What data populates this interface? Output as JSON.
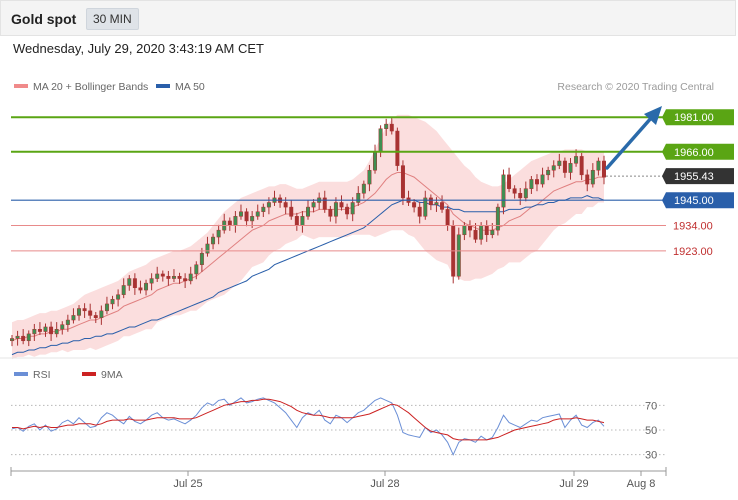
{
  "header": {
    "title": "Gold spot",
    "interval": "30 MIN"
  },
  "timestamp": "Wednesday, July 29, 2020 3:43:19 AM CET",
  "credit": "Research © 2020 Trading Central",
  "colors": {
    "support_resistance": "#5aa514",
    "ma50": "#2a5faa",
    "bollinger": "#f08a8a",
    "current_price": "#333333",
    "rsi": "#6b8fd6",
    "rsi_ma": "#cc2222",
    "arrow": "#2a6aaa",
    "candle": "#a83232"
  },
  "chart_data": [
    {
      "type": "candlestick",
      "legend": [
        {
          "label": "MA 20 + Bollinger Bands",
          "color": "#f08a8a"
        },
        {
          "label": "MA 50",
          "color": "#2a5faa"
        }
      ],
      "ylim": [
        1880,
        1985
      ],
      "x_ticks": [
        "Jul 25",
        "Jul 28",
        "Jul 29",
        "Aug 8"
      ],
      "levels": [
        {
          "value": 1981.0,
          "label": "1981.00",
          "kind": "resistance"
        },
        {
          "value": 1966.0,
          "label": "1966.00",
          "kind": "resistance"
        },
        {
          "value": 1955.43,
          "label": "1955.43",
          "kind": "current"
        },
        {
          "value": 1945.0,
          "label": "1945.00",
          "kind": "ma50"
        },
        {
          "value": 1934.0,
          "label": "1934.00",
          "kind": "support"
        },
        {
          "value": 1923.0,
          "label": "1923.00",
          "kind": "support"
        }
      ],
      "close": [
        1885,
        1886,
        1884,
        1887,
        1889,
        1888,
        1890,
        1887,
        1889,
        1891,
        1893,
        1895,
        1898,
        1897,
        1895,
        1894,
        1897,
        1900,
        1902,
        1904,
        1908,
        1911,
        1907,
        1906,
        1909,
        1911,
        1913,
        1912,
        1911,
        1912,
        1911,
        1910,
        1913,
        1917,
        1922,
        1926,
        1929,
        1932,
        1936,
        1934,
        1938,
        1940,
        1936,
        1938,
        1940,
        1942,
        1944,
        1946,
        1944,
        1942,
        1938,
        1934,
        1938,
        1942,
        1944,
        1946,
        1941,
        1938,
        1944,
        1942,
        1939,
        1944,
        1948,
        1952,
        1958,
        1966,
        1976,
        1978,
        1975,
        1960,
        1946,
        1944,
        1942,
        1938,
        1946,
        1943,
        1944,
        1941,
        1934,
        1912,
        1930,
        1934,
        1932,
        1928,
        1934,
        1930,
        1932,
        1942,
        1956,
        1950,
        1948,
        1946,
        1950,
        1954,
        1952,
        1956,
        1958,
        1960,
        1962,
        1957,
        1961,
        1964,
        1956,
        1952,
        1958,
        1962,
        1955
      ],
      "ma20": [
        1884,
        1885,
        1885,
        1886,
        1886,
        1887,
        1887,
        1888,
        1888,
        1889,
        1889,
        1890,
        1891,
        1892,
        1893,
        1893,
        1894,
        1895,
        1896,
        1897,
        1899,
        1900,
        1901,
        1902,
        1903,
        1904,
        1906,
        1907,
        1908,
        1909,
        1909,
        1910,
        1911,
        1912,
        1914,
        1916,
        1918,
        1920,
        1922,
        1924,
        1926,
        1928,
        1930,
        1932,
        1933,
        1934,
        1936,
        1937,
        1938,
        1939,
        1939,
        1939,
        1940,
        1940,
        1940,
        1941,
        1941,
        1941,
        1941,
        1941,
        1941,
        1942,
        1943,
        1944,
        1946,
        1948,
        1951,
        1954,
        1956,
        1957,
        1957,
        1956,
        1955,
        1953,
        1951,
        1949,
        1947,
        1945,
        1943,
        1939,
        1937,
        1935,
        1934,
        1933,
        1932,
        1932,
        1932,
        1933,
        1934,
        1936,
        1937,
        1938,
        1940,
        1942,
        1943,
        1945,
        1947,
        1949,
        1950,
        1951,
        1952,
        1953,
        1953,
        1954,
        1954,
        1955,
        1955
      ],
      "bb_upper": [
        1892,
        1893,
        1893,
        1894,
        1895,
        1896,
        1896,
        1897,
        1897,
        1898,
        1899,
        1900,
        1902,
        1904,
        1905,
        1906,
        1907,
        1908,
        1909,
        1910,
        1912,
        1914,
        1915,
        1916,
        1917,
        1919,
        1920,
        1921,
        1922,
        1923,
        1923,
        1924,
        1925,
        1927,
        1929,
        1931,
        1934,
        1937,
        1940,
        1942,
        1944,
        1946,
        1947,
        1948,
        1949,
        1950,
        1951,
        1951,
        1952,
        1952,
        1951,
        1950,
        1950,
        1951,
        1952,
        1953,
        1953,
        1953,
        1953,
        1953,
        1953,
        1954,
        1956,
        1958,
        1962,
        1967,
        1972,
        1977,
        1980,
        1982,
        1982,
        1982,
        1981,
        1980,
        1979,
        1977,
        1975,
        1972,
        1969,
        1966,
        1963,
        1960,
        1958,
        1955,
        1953,
        1952,
        1951,
        1951,
        1952,
        1954,
        1956,
        1958,
        1960,
        1962,
        1963,
        1964,
        1965,
        1966,
        1966,
        1967,
        1967,
        1967,
        1967,
        1966,
        1966,
        1966,
        1966
      ],
      "bb_lower": [
        1876,
        1877,
        1877,
        1878,
        1877,
        1878,
        1878,
        1879,
        1879,
        1880,
        1879,
        1880,
        1880,
        1880,
        1881,
        1880,
        1881,
        1882,
        1883,
        1884,
        1886,
        1886,
        1887,
        1888,
        1889,
        1889,
        1892,
        1893,
        1894,
        1895,
        1895,
        1896,
        1897,
        1897,
        1899,
        1901,
        1902,
        1903,
        1904,
        1906,
        1908,
        1910,
        1913,
        1916,
        1917,
        1918,
        1921,
        1923,
        1924,
        1926,
        1927,
        1928,
        1930,
        1929,
        1928,
        1929,
        1929,
        1929,
        1929,
        1929,
        1929,
        1930,
        1930,
        1930,
        1930,
        1929,
        1930,
        1931,
        1932,
        1932,
        1932,
        1930,
        1929,
        1926,
        1923,
        1921,
        1919,
        1918,
        1917,
        1912,
        1911,
        1910,
        1910,
        1911,
        1911,
        1912,
        1913,
        1915,
        1916,
        1918,
        1918,
        1918,
        1920,
        1922,
        1923,
        1926,
        1929,
        1932,
        1934,
        1935,
        1937,
        1939,
        1939,
        1942,
        1942,
        1944,
        1944
      ],
      "ma50": [
        1878,
        1879,
        1879,
        1880,
        1880,
        1881,
        1881,
        1882,
        1882,
        1883,
        1883,
        1884,
        1884,
        1885,
        1885,
        1886,
        1886,
        1887,
        1887,
        1888,
        1889,
        1890,
        1890,
        1891,
        1892,
        1893,
        1893,
        1894,
        1895,
        1896,
        1897,
        1898,
        1899,
        1900,
        1901,
        1902,
        1903,
        1905,
        1906,
        1907,
        1908,
        1909,
        1910,
        1912,
        1913,
        1914,
        1915,
        1917,
        1918,
        1919,
        1920,
        1921,
        1922,
        1923,
        1924,
        1925,
        1926,
        1927,
        1928,
        1929,
        1930,
        1931,
        1932,
        1933,
        1935,
        1937,
        1939,
        1941,
        1943,
        1944,
        1945,
        1945,
        1945,
        1944,
        1944,
        1943,
        1943,
        1942,
        1942,
        1941,
        1941,
        1940,
        1940,
        1940,
        1940,
        1940,
        1940,
        1940,
        1940,
        1941,
        1941,
        1941,
        1942,
        1942,
        1943,
        1943,
        1944,
        1944,
        1945,
        1945,
        1946,
        1946,
        1946,
        1947,
        1946,
        1946,
        1945
      ]
    },
    {
      "type": "line",
      "legend": [
        {
          "label": "RSI",
          "color": "#6b8fd6"
        },
        {
          "label": "9MA",
          "color": "#cc2222"
        }
      ],
      "ylim": [
        20,
        80
      ],
      "y_ticks": [
        "70",
        "50",
        "30"
      ],
      "series": [
        {
          "name": "RSI",
          "values": [
            51,
            52,
            49,
            53,
            55,
            50,
            54,
            49,
            51,
            56,
            58,
            55,
            60,
            56,
            52,
            53,
            60,
            64,
            62,
            58,
            55,
            61,
            57,
            55,
            58,
            62,
            64,
            60,
            58,
            59,
            57,
            55,
            58,
            62,
            68,
            72,
            70,
            74,
            75,
            70,
            73,
            76,
            72,
            73,
            75,
            76,
            74,
            72,
            68,
            64,
            58,
            52,
            60,
            64,
            62,
            66,
            58,
            55,
            62,
            60,
            56,
            60,
            64,
            66,
            70,
            74,
            76,
            74,
            72,
            62,
            48,
            46,
            45,
            44,
            52,
            48,
            50,
            46,
            40,
            30,
            40,
            43,
            42,
            40,
            45,
            42,
            44,
            52,
            62,
            56,
            54,
            52,
            55,
            58,
            57,
            60,
            61,
            62,
            63,
            52,
            58,
            62,
            54,
            52,
            56,
            58,
            53
          ]
        },
        {
          "name": "9MA",
          "values": [
            52,
            52,
            51,
            52,
            53,
            52,
            53,
            52,
            52,
            53,
            54,
            54,
            55,
            55,
            55,
            54,
            55,
            57,
            58,
            58,
            58,
            59,
            58,
            58,
            58,
            59,
            60,
            60,
            60,
            60,
            59,
            59,
            59,
            60,
            62,
            64,
            66,
            68,
            70,
            71,
            72,
            73,
            73,
            74,
            74,
            75,
            75,
            74,
            73,
            71,
            69,
            66,
            64,
            63,
            62,
            62,
            61,
            60,
            60,
            60,
            60,
            60,
            61,
            62,
            63,
            65,
            67,
            69,
            71,
            70,
            67,
            64,
            60,
            56,
            52,
            49,
            48,
            47,
            46,
            43,
            42,
            42,
            42,
            42,
            42,
            42,
            43,
            44,
            46,
            48,
            50,
            51,
            52,
            53,
            54,
            55,
            56,
            58,
            59,
            59,
            59,
            60,
            59,
            58,
            58,
            57,
            56
          ]
        }
      ],
      "threshold_lines": [
        70,
        50,
        30
      ]
    }
  ]
}
